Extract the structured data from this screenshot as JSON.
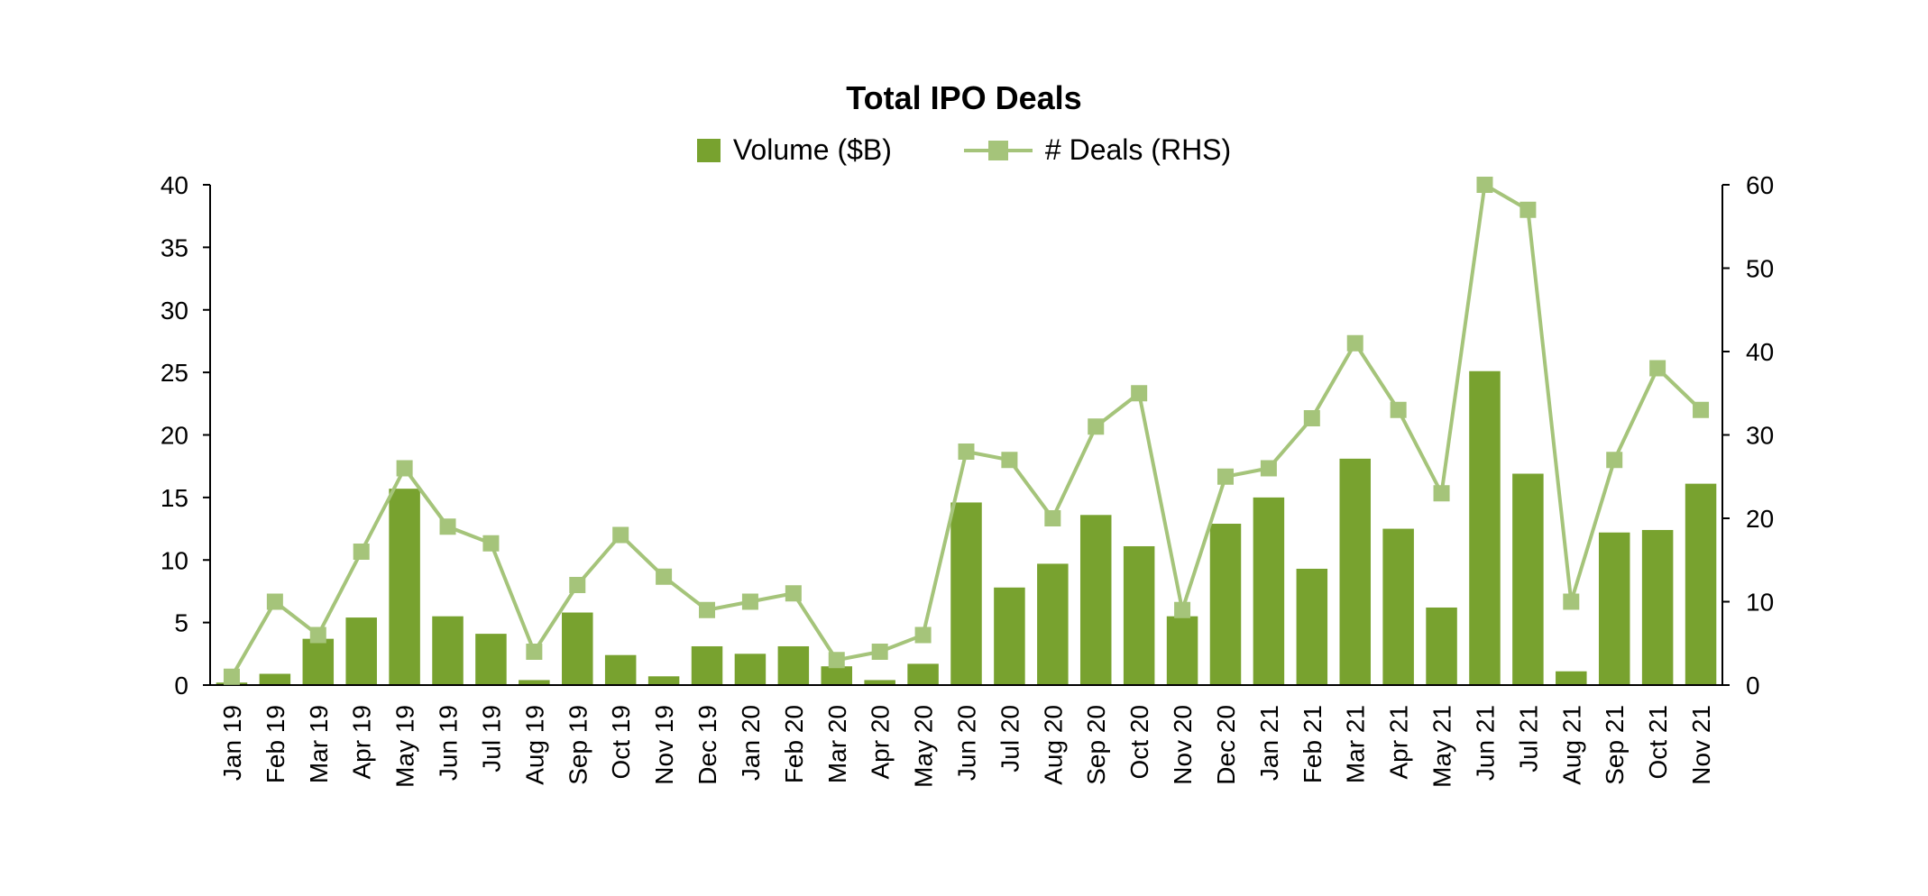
{
  "chart_data": {
    "type": "bar",
    "title": "Total IPO Deals",
    "categories": [
      "Jan 19",
      "Feb 19",
      "Mar 19",
      "Apr 19",
      "May 19",
      "Jun 19",
      "Jul 19",
      "Aug 19",
      "Sep 19",
      "Oct 19",
      "Nov 19",
      "Dec 19",
      "Jan 20",
      "Feb 20",
      "Mar 20",
      "Apr 20",
      "May 20",
      "Jun 20",
      "Jul 20",
      "Aug 20",
      "Sep 20",
      "Oct 20",
      "Nov 20",
      "Dec 20",
      "Jan 21",
      "Feb 21",
      "Mar 21",
      "Apr 21",
      "May 21",
      "Jun 21",
      "Jul 21",
      "Aug 21",
      "Sep 21",
      "Oct 21",
      "Nov 21"
    ],
    "series": [
      {
        "name": "Volume ($B)",
        "type": "bar",
        "axis": "left",
        "values": [
          0.2,
          0.9,
          3.7,
          5.4,
          15.7,
          5.5,
          4.1,
          0.4,
          5.8,
          2.4,
          0.7,
          3.1,
          2.5,
          3.1,
          1.5,
          0.4,
          1.7,
          14.6,
          7.8,
          9.7,
          13.6,
          11.1,
          5.5,
          12.9,
          15.0,
          9.3,
          18.1,
          12.5,
          6.2,
          25.1,
          16.9,
          1.1,
          12.2,
          12.4,
          16.1
        ]
      },
      {
        "name": "# Deals (RHS)",
        "type": "line",
        "axis": "right",
        "values": [
          1,
          10,
          6,
          16,
          26,
          19,
          17,
          4,
          12,
          18,
          13,
          9,
          10,
          11,
          3,
          4,
          6,
          28,
          27,
          20,
          31,
          35,
          9,
          25,
          26,
          32,
          41,
          33,
          23,
          60,
          57,
          10,
          27,
          38,
          33
        ]
      }
    ],
    "y_left": {
      "lim": [
        0,
        40
      ],
      "ticks": [
        "0",
        "5",
        "10",
        "15",
        "20",
        "25",
        "30",
        "35",
        "40"
      ]
    },
    "y_right": {
      "lim": [
        0,
        60
      ],
      "ticks": [
        "0",
        "10",
        "20",
        "30",
        "40",
        "50",
        "60"
      ]
    },
    "grid": false,
    "legend_position": "top-center",
    "colors": {
      "bar": "#78a22f",
      "line": "#a5c47a",
      "axis": "#000000"
    }
  }
}
